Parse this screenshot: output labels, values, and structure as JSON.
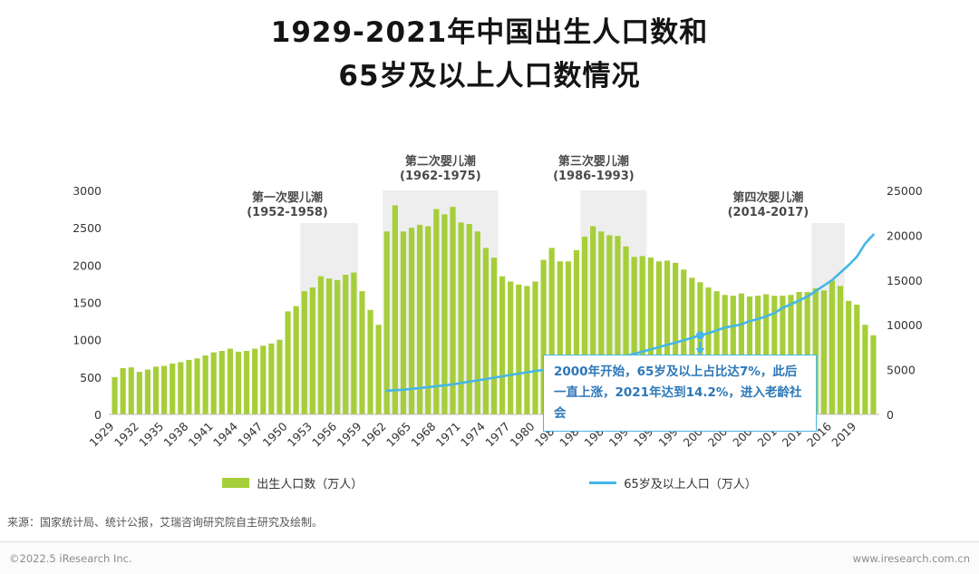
{
  "title": {
    "line1": "1929-2021年中国出生人口数和",
    "line2": "65岁及以上人口数情况"
  },
  "legend": {
    "bars": "出生人口数（万人）",
    "line": "65岁及以上人口（万人）"
  },
  "source": "来源：国家统计局、统计公报，艾瑞咨询研究院自主研究及绘制。",
  "footer": {
    "copyright": "©2022.5 iResearch Inc.",
    "website": "www.iresearch.com.cn"
  },
  "colors": {
    "bar": "#a6ce39",
    "line": "#45b6e6",
    "region": "#dedede",
    "callout_border": "#45b6e6",
    "callout_text": "#2c77b8"
  },
  "chart_data": {
    "type": "combo",
    "title": "1929-2021年中国出生人口数和65岁及以上人口数情况",
    "years": {
      "start": 1929,
      "end": 2021
    },
    "left_axis": {
      "min": 0,
      "max": 3000,
      "ticks": [
        0,
        500,
        1000,
        1500,
        2000,
        2500,
        3000
      ]
    },
    "right_axis": {
      "min": 0,
      "max": 25000,
      "ticks": [
        0,
        5000,
        10000,
        15000,
        20000,
        25000
      ]
    },
    "x_ticks": [
      1929,
      1932,
      1935,
      1938,
      1941,
      1944,
      1947,
      1950,
      1953,
      1956,
      1959,
      1962,
      1965,
      1968,
      1971,
      1974,
      1977,
      1980,
      1983,
      1986,
      1989,
      1992,
      1995,
      1998,
      2001,
      2004,
      2007,
      2010,
      2013,
      2016,
      2019
    ],
    "series": [
      {
        "name": "出生人口数（万人）",
        "type": "bar",
        "axis": "left",
        "start_year": 1929,
        "values": [
          500,
          620,
          630,
          570,
          600,
          640,
          650,
          680,
          700,
          730,
          750,
          790,
          830,
          850,
          880,
          840,
          850,
          880,
          920,
          950,
          1000,
          1380,
          1450,
          1650,
          1700,
          1850,
          1820,
          1800,
          1870,
          1900,
          1650,
          1400,
          1200,
          2450,
          2800,
          2450,
          2500,
          2540,
          2520,
          2750,
          2680,
          2780,
          2570,
          2550,
          2450,
          2230,
          2100,
          1850,
          1780,
          1740,
          1720,
          1780,
          2070,
          2230,
          2050,
          2050,
          2200,
          2380,
          2520,
          2450,
          2400,
          2390,
          2250,
          2110,
          2120,
          2100,
          2050,
          2060,
          2030,
          1940,
          1830,
          1770,
          1700,
          1650,
          1600,
          1590,
          1620,
          1580,
          1590,
          1610,
          1590,
          1590,
          1600,
          1640,
          1640,
          1690,
          1660,
          1790,
          1720,
          1520,
          1470,
          1200,
          1060
        ]
      },
      {
        "name": "65岁及以上人口（万人）",
        "type": "line",
        "axis": "right",
        "start_year": 1962,
        "values": [
          2650,
          2700,
          2750,
          2850,
          2950,
          3050,
          3150,
          3250,
          3350,
          3500,
          3650,
          3800,
          3950,
          4100,
          4250,
          4400,
          4550,
          4700,
          4850,
          4950,
          4991,
          5150,
          5300,
          5450,
          5600,
          5750,
          5900,
          6100,
          6299,
          6530,
          6760,
          7000,
          7250,
          7510,
          7760,
          8010,
          8270,
          8540,
          8821,
          9062,
          9377,
          9692,
          9857,
          10055,
          10419,
          10636,
          10956,
          11307,
          11894,
          12288,
          12714,
          13161,
          13755,
          14386,
          15003,
          15831,
          16658,
          17603,
          19064,
          20056
        ]
      }
    ],
    "booms": [
      {
        "name": "第一次婴儿潮",
        "range": "(1952-1958)",
        "from": 1952,
        "to": 1958
      },
      {
        "name": "第二次婴儿潮",
        "range": "(1962-1975)",
        "from": 1962,
        "to": 1975
      },
      {
        "name": "第三次婴儿潮",
        "range": "(1986-1993)",
        "from": 1986,
        "to": 1993
      },
      {
        "name": "第四次婴儿潮",
        "range": "(2014-2017)",
        "from": 2014,
        "to": 2017
      }
    ],
    "callout": {
      "text": "2000年开始，65岁及以上占比达7%，此后一直上涨，2021年达到14.2%，进入老龄社会",
      "anchor_year": 2000
    }
  }
}
